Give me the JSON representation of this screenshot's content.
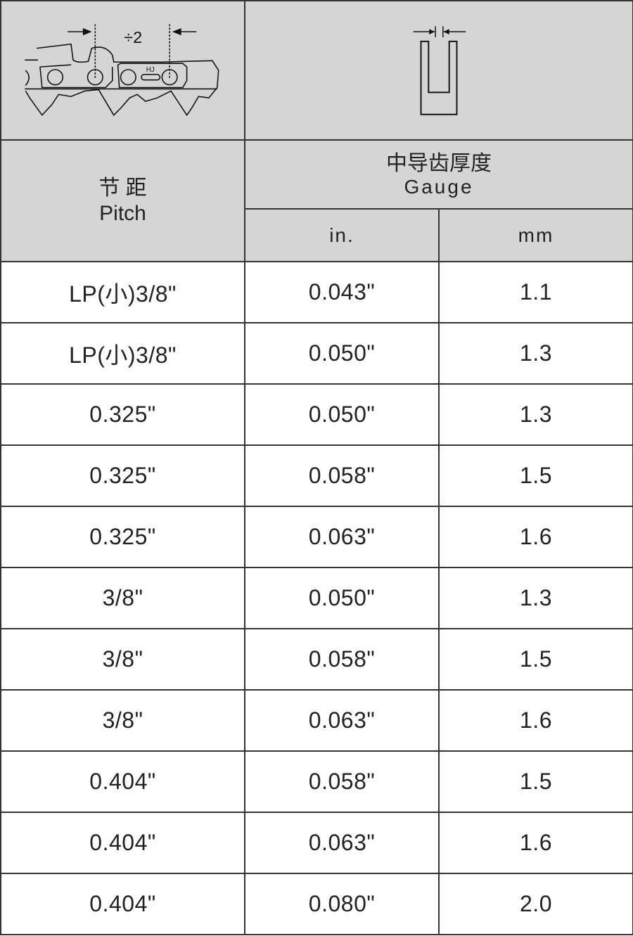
{
  "header": {
    "pitch_zh": "节 距",
    "pitch_en": "Pitch",
    "gauge_zh": "中导齿厚度",
    "gauge_en": "Gauge",
    "unit_in": "in.",
    "unit_mm": "mm",
    "pitch_diagram": {
      "icon": "chain-pitch-diagram-icon",
      "label": "÷2",
      "link_mark": "HJ"
    },
    "gauge_diagram": {
      "icon": "drive-link-gauge-icon"
    }
  },
  "colors": {
    "header_bg": "#d5d5d5",
    "border": "#333333"
  },
  "rows": [
    {
      "pitch": "LP(小)3/8\"",
      "in": "0.043\"",
      "mm": "1.1"
    },
    {
      "pitch": "LP(小)3/8\"",
      "in": "0.050\"",
      "mm": "1.3"
    },
    {
      "pitch": "0.325\"",
      "in": "0.050\"",
      "mm": "1.3"
    },
    {
      "pitch": "0.325\"",
      "in": "0.058\"",
      "mm": "1.5"
    },
    {
      "pitch": "0.325\"",
      "in": "0.063\"",
      "mm": "1.6"
    },
    {
      "pitch": "3/8\"",
      "in": "0.050\"",
      "mm": "1.3"
    },
    {
      "pitch": "3/8\"",
      "in": "0.058\"",
      "mm": "1.5"
    },
    {
      "pitch": "3/8\"",
      "in": "0.063\"",
      "mm": "1.6"
    },
    {
      "pitch": "0.404\"",
      "in": "0.058\"",
      "mm": "1.5"
    },
    {
      "pitch": "0.404\"",
      "in": "0.063\"",
      "mm": "1.6"
    },
    {
      "pitch": "0.404\"",
      "in": "0.080\"",
      "mm": "2.0"
    }
  ]
}
